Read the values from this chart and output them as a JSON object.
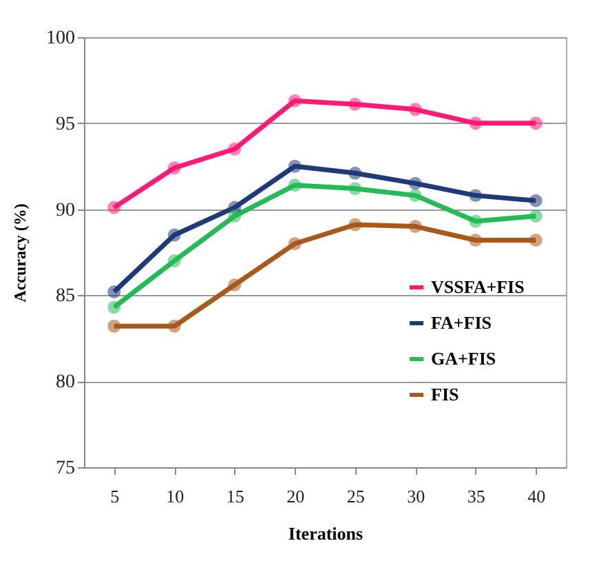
{
  "chart_data": {
    "type": "line",
    "xlabel": "Iterations",
    "ylabel": "Accuracy (%)",
    "categories": [
      "5",
      "10",
      "15",
      "20",
      "25",
      "30",
      "35",
      "40"
    ],
    "series": [
      {
        "name": "VSSFA+FIS",
        "color": "#ff1a75",
        "values": [
          90.1,
          92.4,
          93.5,
          96.3,
          96.1,
          95.8,
          95.0,
          95.0
        ]
      },
      {
        "name": "FA+FIS",
        "color": "#1f3a78",
        "values": [
          85.2,
          88.5,
          90.1,
          92.5,
          92.1,
          91.5,
          90.8,
          90.5
        ]
      },
      {
        "name": "GA+FIS",
        "color": "#22bb55",
        "values": [
          84.3,
          87.0,
          89.6,
          91.4,
          91.2,
          90.8,
          89.3,
          89.6
        ]
      },
      {
        "name": "FIS",
        "color": "#a85a1a",
        "values": [
          83.2,
          83.2,
          85.6,
          88.0,
          89.1,
          89.0,
          88.2,
          88.2
        ]
      }
    ],
    "ylim": [
      75,
      100
    ],
    "yticks": [
      75,
      80,
      85,
      90,
      95,
      100
    ],
    "grid": "y",
    "legend": "bottom right",
    "marker": "circle",
    "line_style": "solid"
  }
}
